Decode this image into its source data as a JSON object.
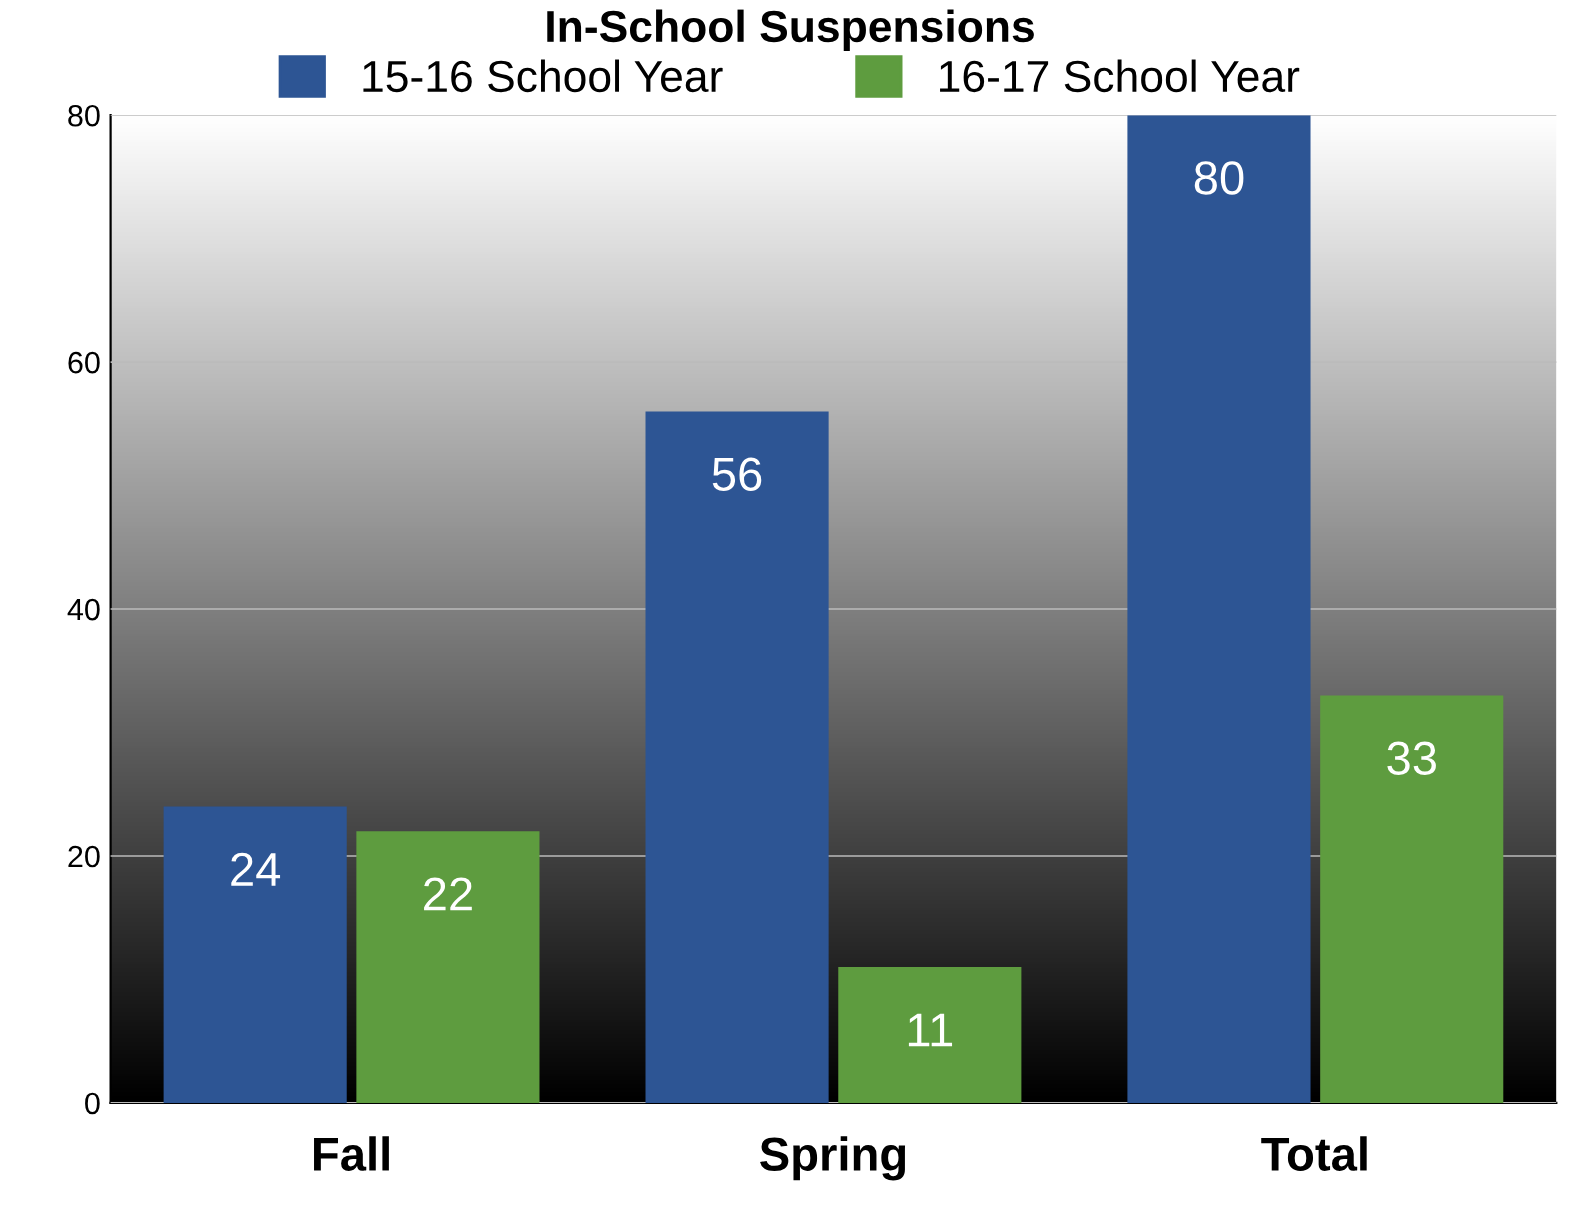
{
  "chart_data": {
    "type": "bar",
    "title": "In-School Suspensions",
    "categories": [
      "Fall",
      "Spring",
      "Total"
    ],
    "series": [
      {
        "name": "15-16 School Year",
        "color": "#2d5594",
        "values": [
          24,
          56,
          80
        ]
      },
      {
        "name": "16-17 School Year",
        "color": "#5e9c3f",
        "values": [
          22,
          11,
          33
        ]
      }
    ],
    "ylim": [
      0,
      80
    ],
    "yticks": [
      0,
      20,
      40,
      60,
      80
    ],
    "grid": "y",
    "legend": "top",
    "data_labels": true
  }
}
